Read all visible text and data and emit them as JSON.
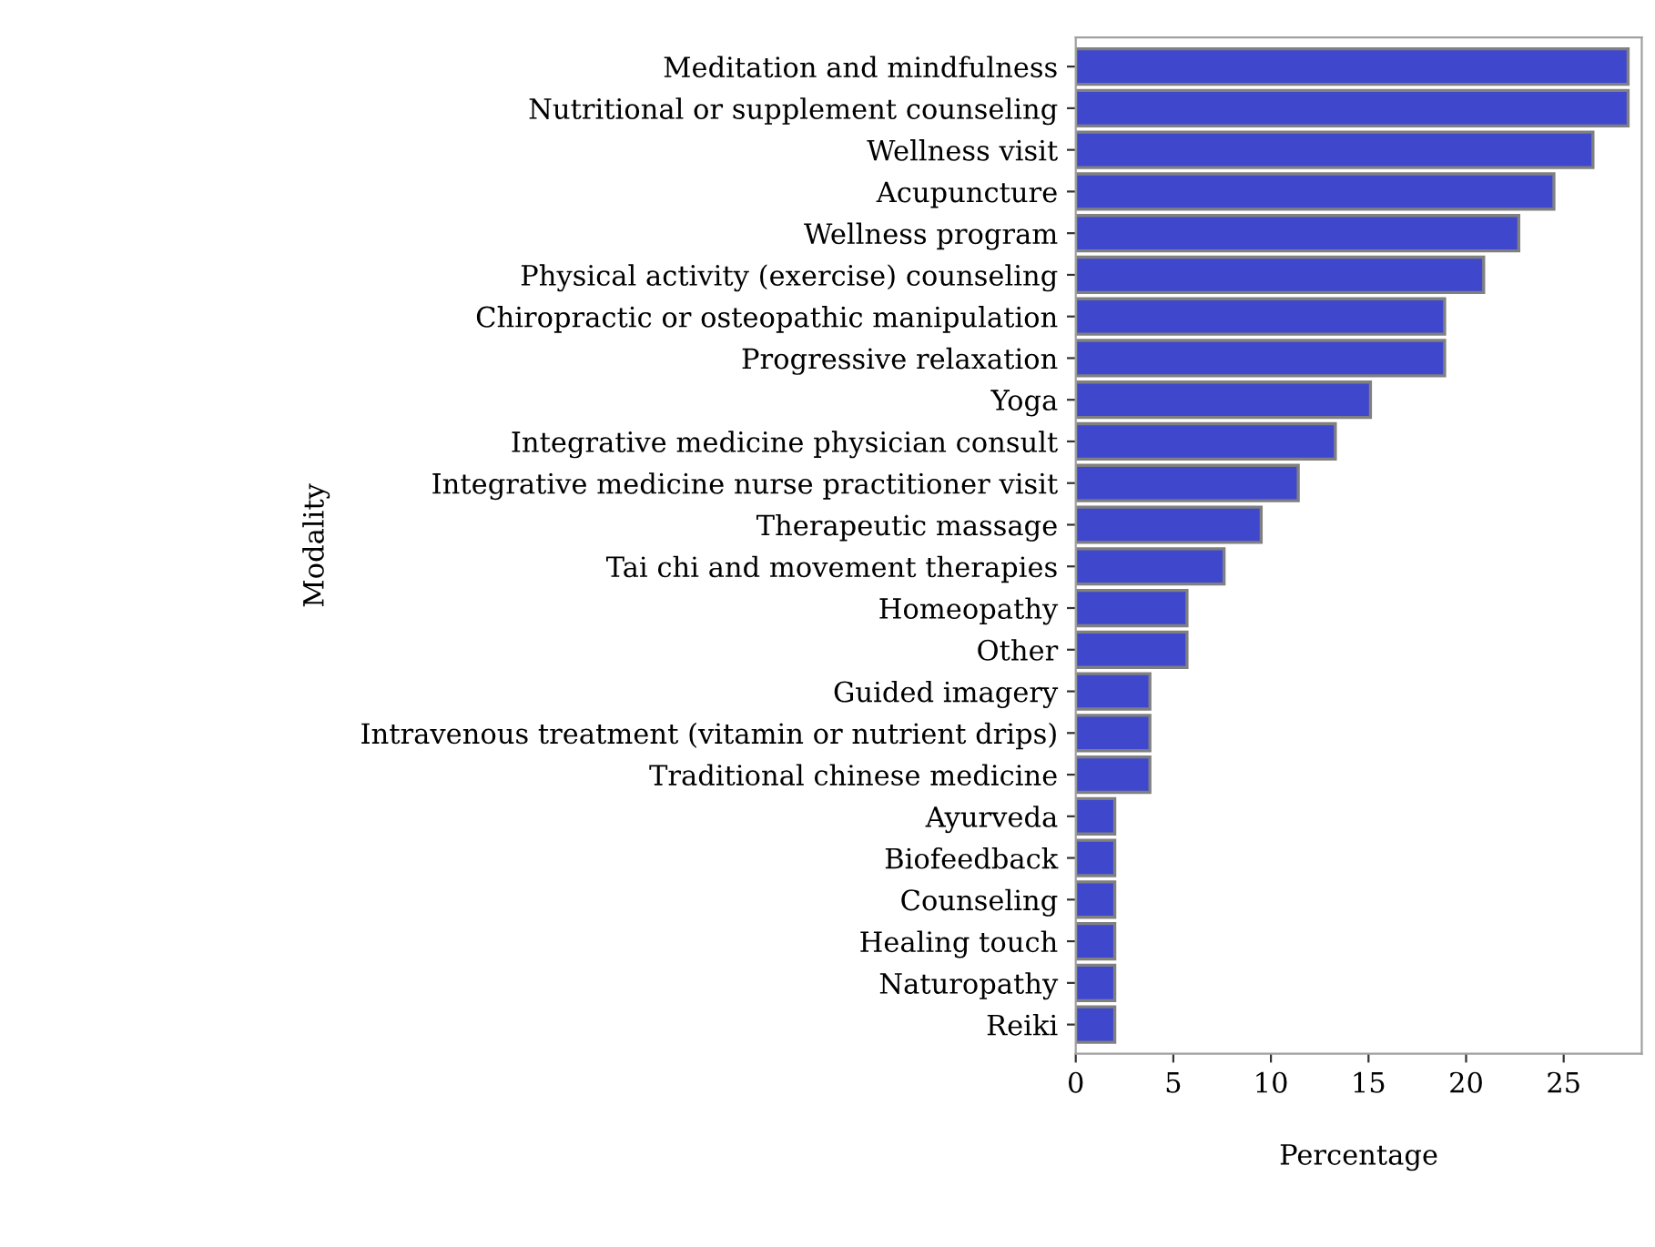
{
  "chart_data": {
    "type": "bar",
    "orientation": "horizontal",
    "xlabel": "Percentage",
    "ylabel": "Modality",
    "categories": [
      "Meditation and mindfulness",
      "Nutritional or supplement counseling",
      "Wellness visit",
      "Acupuncture",
      "Wellness program",
      "Physical activity (exercise) counseling",
      "Chiropractic or osteopathic manipulation",
      "Progressive relaxation",
      "Yoga",
      "Integrative medicine physician consult",
      "Integrative medicine nurse practitioner visit",
      "Therapeutic massage",
      "Tai chi and movement therapies",
      "Homeopathy",
      "Other",
      "Guided imagery",
      "Intravenous treatment (vitamin or nutrient drips)",
      "Traditional chinese medicine",
      "Ayurveda",
      "Biofeedback",
      "Counseling",
      "Healing touch",
      "Naturopathy",
      "Reiki"
    ],
    "values": [
      28.3,
      28.3,
      26.5,
      24.5,
      22.7,
      20.9,
      18.9,
      18.9,
      15.1,
      13.3,
      11.4,
      9.5,
      7.6,
      5.7,
      5.7,
      3.8,
      3.8,
      3.8,
      2.0,
      2.0,
      2.0,
      2.0,
      2.0,
      2.0
    ],
    "color": "#3f48cc",
    "xlim": [
      0,
      29
    ],
    "xticks": [
      0,
      5,
      10,
      15,
      20,
      25
    ],
    "grid": false,
    "legend": false
  }
}
